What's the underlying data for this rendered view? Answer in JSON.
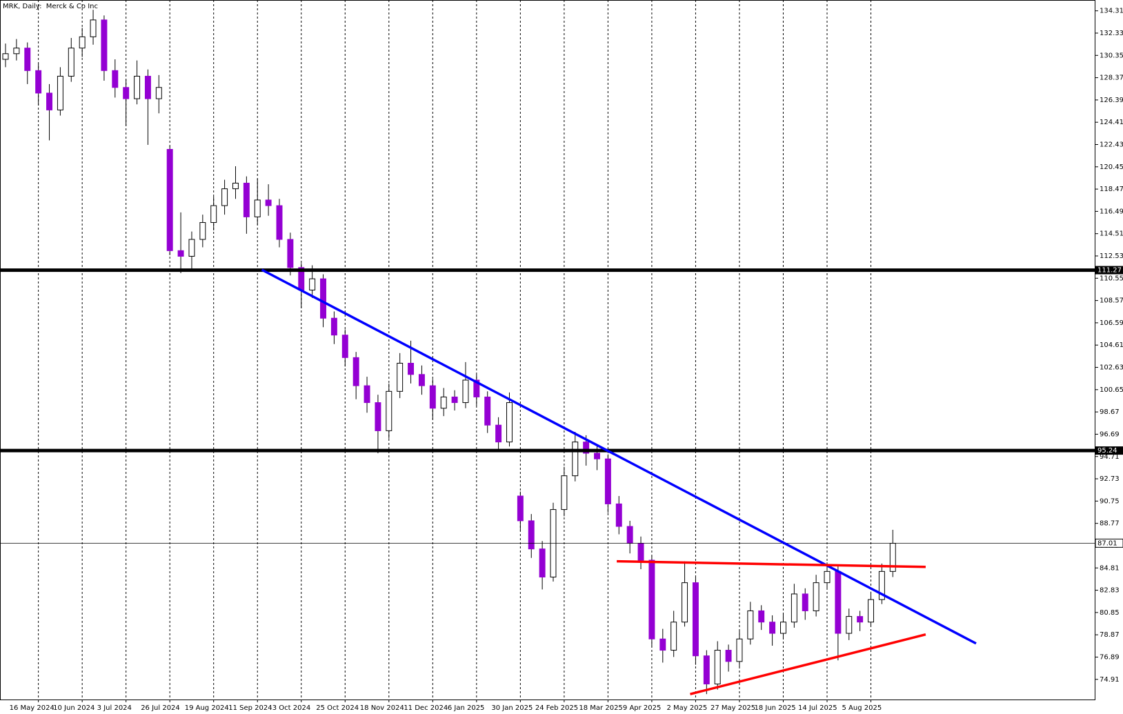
{
  "chart_data": {
    "type": "candlestick",
    "title": "MRK, Daily:  Merck & Co Inc",
    "up_color": "#ffffff",
    "down_color": "#9400d3",
    "wick_color": "#000000",
    "categories": [
      null,
      null,
      null,
      "16 May 2024",
      null,
      null,
      null,
      "10 Jun 2024",
      null,
      null,
      null,
      "3 Jul 2024",
      null,
      null,
      null,
      "26 Jul 2024",
      null,
      null,
      null,
      "19 Aug 2024",
      null,
      null,
      null,
      "11 Sep 2024",
      null,
      null,
      null,
      "3 Oct 2024",
      null,
      null,
      null,
      "25 Oct 2024",
      null,
      null,
      null,
      "18 Nov 2024",
      null,
      null,
      null,
      "11 Dec 2024",
      null,
      null,
      null,
      "6 Jan 2025",
      null,
      null,
      null,
      "30 Jan 2025",
      null,
      null,
      null,
      "24 Feb 2025",
      null,
      null,
      null,
      "18 Mar 2025",
      null,
      null,
      null,
      "9 Apr 2025",
      null,
      null,
      null,
      "2 May 2025",
      null,
      null,
      null,
      "27 May 2025",
      null,
      null,
      null,
      "18 Jun 2025",
      null,
      null,
      null,
      "14 Jul 2025",
      null,
      null,
      null,
      "5 Aug 2025",
      null,
      null
    ],
    "ohlc": [
      [
        130.0,
        131.4,
        129.3,
        130.5
      ],
      [
        130.5,
        131.8,
        129.9,
        131.0
      ],
      [
        131.0,
        131.5,
        127.8,
        129.0
      ],
      [
        129.0,
        129.6,
        125.9,
        127.0
      ],
      [
        127.0,
        127.8,
        122.8,
        125.5
      ],
      [
        125.5,
        129.3,
        125.0,
        128.5
      ],
      [
        128.5,
        131.9,
        128.0,
        131.0
      ],
      [
        131.0,
        132.8,
        130.2,
        132.0
      ],
      [
        132.0,
        134.4,
        131.3,
        133.5
      ],
      [
        133.5,
        133.9,
        128.1,
        129.0
      ],
      [
        129.0,
        130.0,
        126.6,
        127.5
      ],
      [
        127.5,
        128.2,
        124.1,
        126.5
      ],
      [
        126.5,
        129.9,
        126.0,
        128.5
      ],
      [
        128.5,
        129.1,
        122.4,
        126.5
      ],
      [
        126.5,
        128.6,
        125.2,
        127.5
      ],
      [
        122.0,
        122.3,
        112.6,
        113.0
      ],
      [
        113.0,
        116.4,
        111.0,
        112.5
      ],
      [
        112.5,
        114.7,
        111.4,
        114.0
      ],
      [
        114.0,
        116.2,
        113.3,
        115.5
      ],
      [
        115.5,
        117.8,
        114.8,
        117.0
      ],
      [
        117.0,
        119.3,
        116.2,
        118.5
      ],
      [
        118.5,
        120.5,
        117.6,
        119.0
      ],
      [
        119.0,
        119.6,
        114.5,
        116.0
      ],
      [
        116.0,
        119.4,
        115.3,
        117.5
      ],
      [
        117.5,
        118.9,
        116.1,
        117.0
      ],
      [
        117.0,
        117.6,
        113.3,
        114.0
      ],
      [
        114.0,
        114.6,
        110.8,
        111.5
      ],
      [
        111.5,
        111.9,
        107.9,
        109.5
      ],
      [
        109.5,
        111.7,
        108.8,
        110.5
      ],
      [
        110.5,
        110.9,
        106.2,
        107.0
      ],
      [
        107.0,
        107.6,
        104.7,
        105.5
      ],
      [
        105.5,
        106.0,
        102.7,
        103.5
      ],
      [
        103.5,
        104.0,
        99.8,
        101.0
      ],
      [
        101.0,
        101.8,
        98.6,
        99.5
      ],
      [
        99.5,
        100.2,
        95.0,
        97.0
      ],
      [
        97.0,
        101.2,
        96.3,
        100.5
      ],
      [
        100.5,
        103.9,
        99.9,
        103.0
      ],
      [
        103.0,
        105.0,
        101.2,
        102.0
      ],
      [
        102.0,
        102.8,
        100.2,
        101.0
      ],
      [
        101.0,
        101.6,
        98.0,
        99.0
      ],
      [
        99.0,
        100.8,
        98.3,
        100.0
      ],
      [
        100.0,
        100.6,
        98.8,
        99.5
      ],
      [
        99.5,
        103.1,
        99.0,
        101.5
      ],
      [
        101.5,
        102.0,
        99.2,
        100.0
      ],
      [
        100.0,
        100.5,
        96.8,
        97.5
      ],
      [
        97.5,
        98.2,
        95.2,
        96.0
      ],
      [
        96.0,
        100.4,
        95.6,
        99.5
      ],
      [
        91.2,
        91.6,
        88.1,
        89.0
      ],
      [
        89.0,
        89.6,
        85.7,
        86.5
      ],
      [
        86.5,
        87.2,
        82.9,
        84.0
      ],
      [
        84.0,
        90.6,
        83.6,
        90.0
      ],
      [
        90.0,
        93.8,
        89.4,
        93.0
      ],
      [
        93.0,
        96.9,
        92.5,
        96.0
      ],
      [
        96.0,
        96.6,
        93.9,
        95.0
      ],
      [
        95.0,
        95.8,
        93.5,
        94.5
      ],
      [
        94.5,
        94.9,
        89.7,
        90.5
      ],
      [
        90.5,
        91.2,
        87.8,
        88.5
      ],
      [
        88.5,
        89.0,
        86.1,
        87.0
      ],
      [
        87.0,
        87.6,
        84.7,
        85.5
      ],
      [
        85.5,
        85.9,
        77.8,
        78.5
      ],
      [
        78.5,
        79.4,
        76.4,
        77.5
      ],
      [
        77.5,
        81.0,
        76.9,
        80.0
      ],
      [
        80.0,
        85.4,
        79.6,
        83.5
      ],
      [
        83.5,
        84.0,
        76.2,
        77.0
      ],
      [
        77.0,
        77.5,
        73.6,
        74.5
      ],
      [
        74.5,
        78.3,
        74.0,
        77.5
      ],
      [
        77.5,
        78.0,
        75.6,
        76.5
      ],
      [
        76.5,
        79.2,
        76.0,
        78.5
      ],
      [
        78.5,
        81.8,
        78.0,
        81.0
      ],
      [
        81.0,
        81.5,
        79.3,
        80.0
      ],
      [
        80.0,
        80.6,
        77.9,
        79.0
      ],
      [
        79.0,
        80.8,
        78.5,
        80.0
      ],
      [
        80.0,
        83.4,
        79.5,
        82.5
      ],
      [
        82.5,
        83.0,
        80.2,
        81.0
      ],
      [
        81.0,
        84.2,
        80.5,
        83.5
      ],
      [
        83.5,
        85.3,
        83.0,
        84.5
      ],
      [
        84.5,
        85.0,
        76.6,
        79.0
      ],
      [
        79.0,
        81.2,
        78.4,
        80.5
      ],
      [
        80.5,
        81.0,
        79.2,
        80.0
      ],
      [
        80.0,
        82.7,
        79.6,
        82.0
      ],
      [
        82.0,
        85.2,
        81.6,
        84.5
      ],
      [
        84.5,
        88.2,
        84.0,
        87.0
      ]
    ],
    "ylim": [
      73.12,
      135.27
    ],
    "yticks": [
      134.31,
      132.33,
      130.35,
      128.37,
      126.39,
      124.41,
      122.43,
      120.45,
      118.47,
      116.49,
      114.51,
      112.53,
      110.55,
      108.57,
      106.59,
      104.61,
      102.63,
      100.65,
      98.67,
      96.69,
      94.71,
      92.73,
      90.75,
      88.77,
      86.79,
      84.81,
      82.83,
      80.85,
      78.87,
      76.89,
      74.91
    ],
    "levels": [
      {
        "value": 111.27,
        "color": "#000000"
      },
      {
        "value": 95.24,
        "color": "#000000"
      }
    ],
    "current_price": 87.01,
    "trendlines": [
      {
        "color": "#0000ff",
        "points": [
          [
            23.4,
            111.3
          ],
          [
            88.6,
            78.1
          ]
        ]
      },
      {
        "color": "#ff0000",
        "points": [
          [
            55.8,
            85.4
          ],
          [
            84.0,
            84.9
          ]
        ]
      },
      {
        "color": "#ff0000",
        "points": [
          [
            62.5,
            73.6
          ],
          [
            84.0,
            78.9
          ]
        ]
      }
    ]
  }
}
